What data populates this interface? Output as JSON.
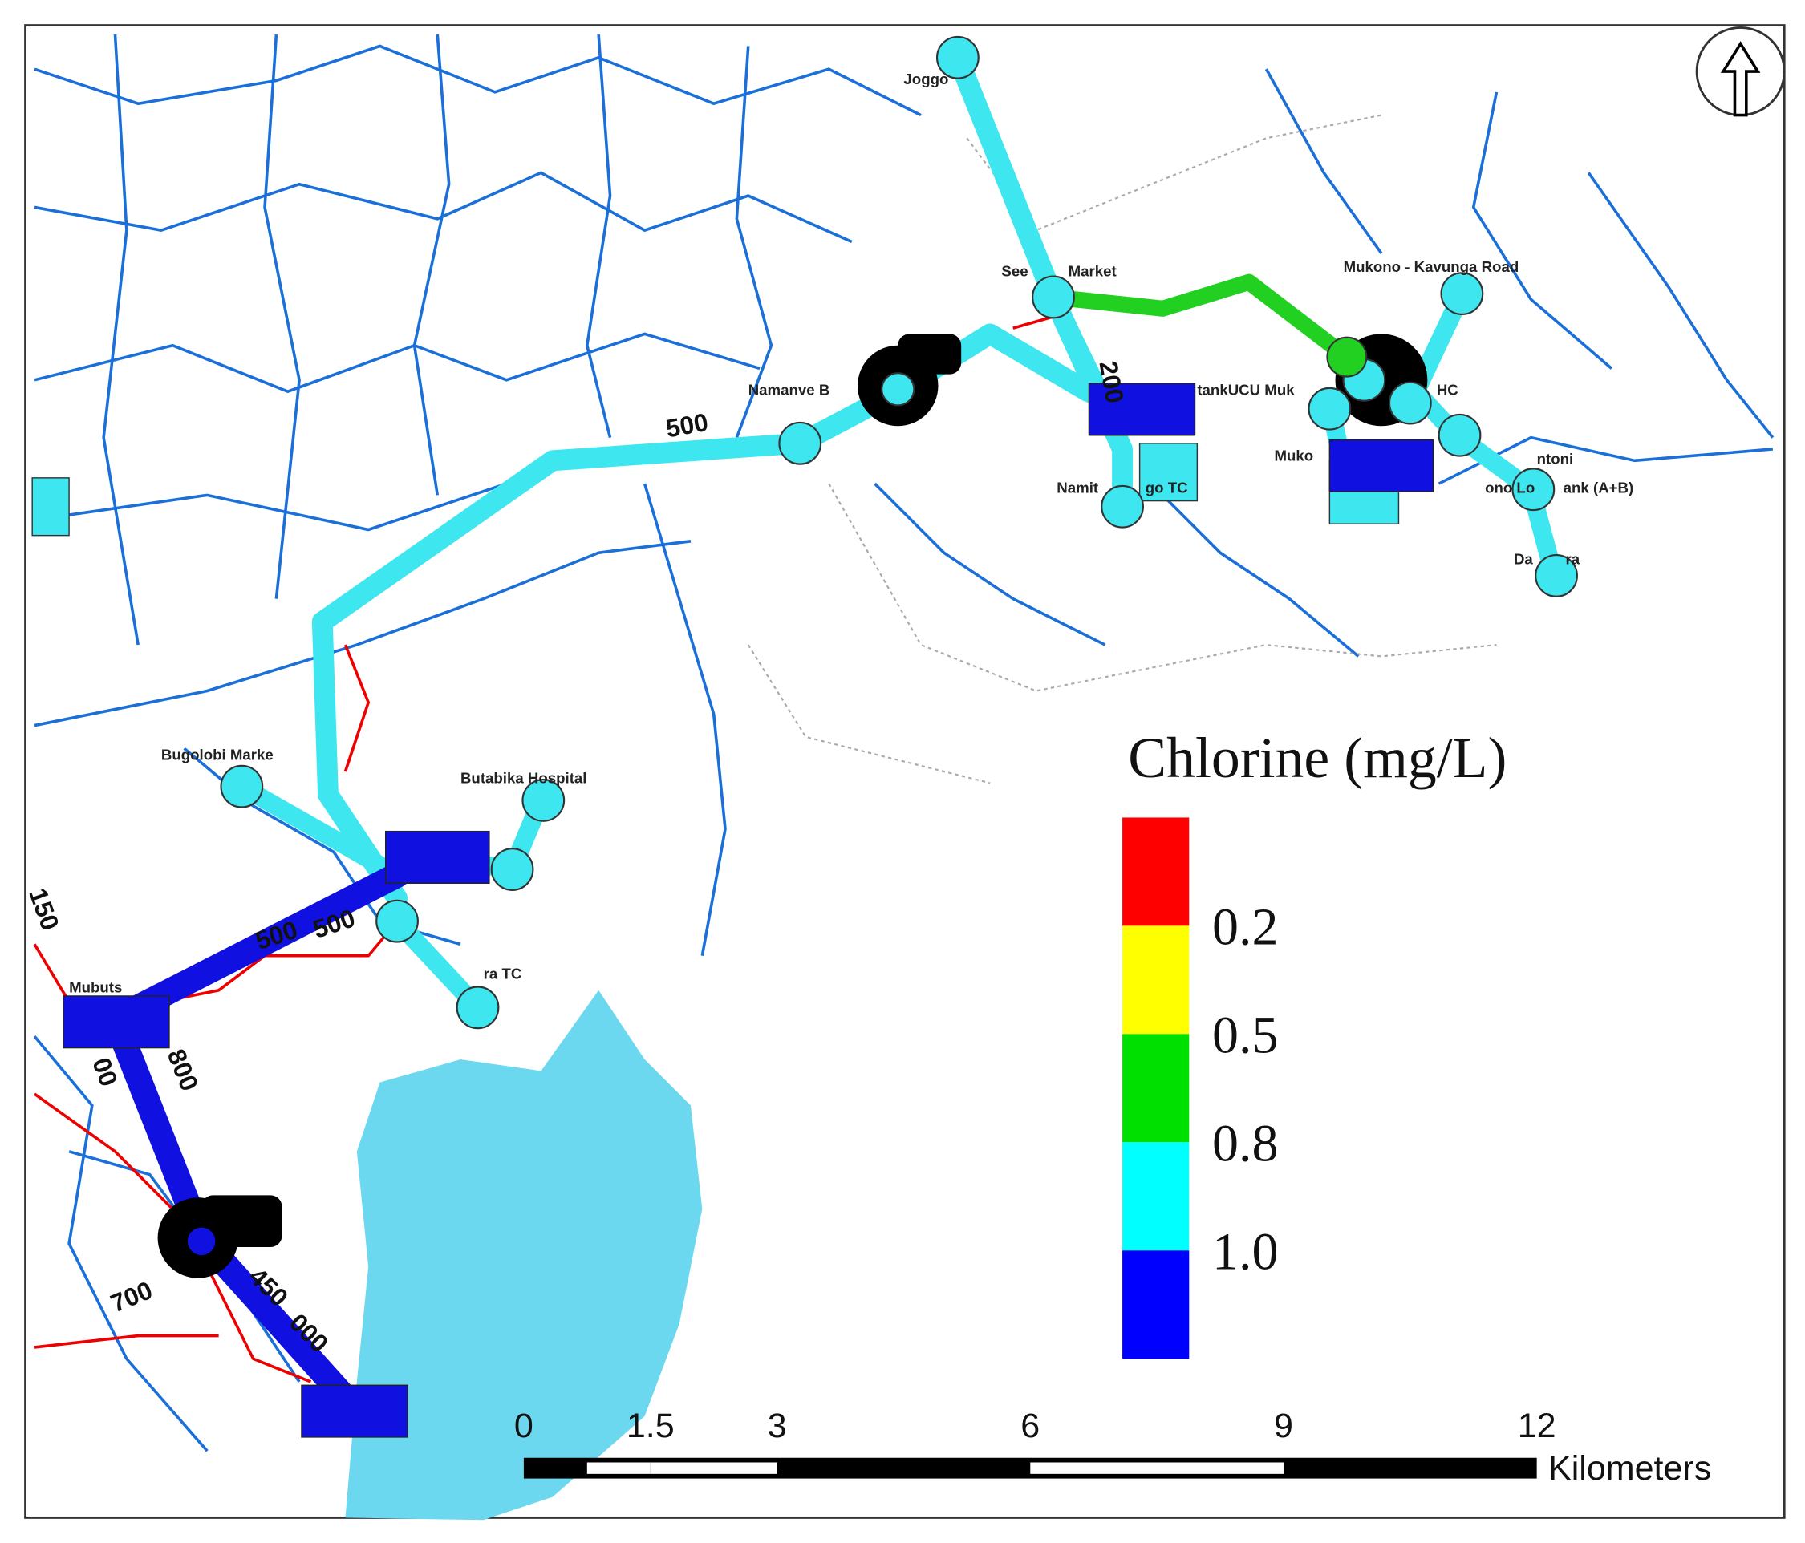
{
  "places": [
    "Joggo",
    "See",
    "Market",
    "Namanve B",
    "Mukono - Kavunga Road",
    "HC",
    "tankUCU Muk",
    "Namit",
    "go TC",
    "Muko",
    "ono Lo",
    "ank (A+B)",
    "ntoni",
    "Da",
    "ra",
    "Bugolobi Marke",
    "Butabika Hospital",
    "ra TC",
    "Mubuts"
  ],
  "pipe_labels": [
    "500",
    "200",
    "500",
    "500",
    "800",
    "700",
    "450",
    "000",
    "150",
    "00"
  ],
  "legend": {
    "title": "Chlorine (mg/L)",
    "colors": [
      "#ff0000",
      "#ffff00",
      "#00e000",
      "#00ffff",
      "#0000ff"
    ],
    "breaks": [
      "0.2",
      "0.5",
      "0.8",
      "1.0"
    ]
  },
  "scale_bar": {
    "ticks": [
      0,
      1.5,
      3,
      6,
      9,
      12
    ],
    "unit": "Kilometers"
  }
}
